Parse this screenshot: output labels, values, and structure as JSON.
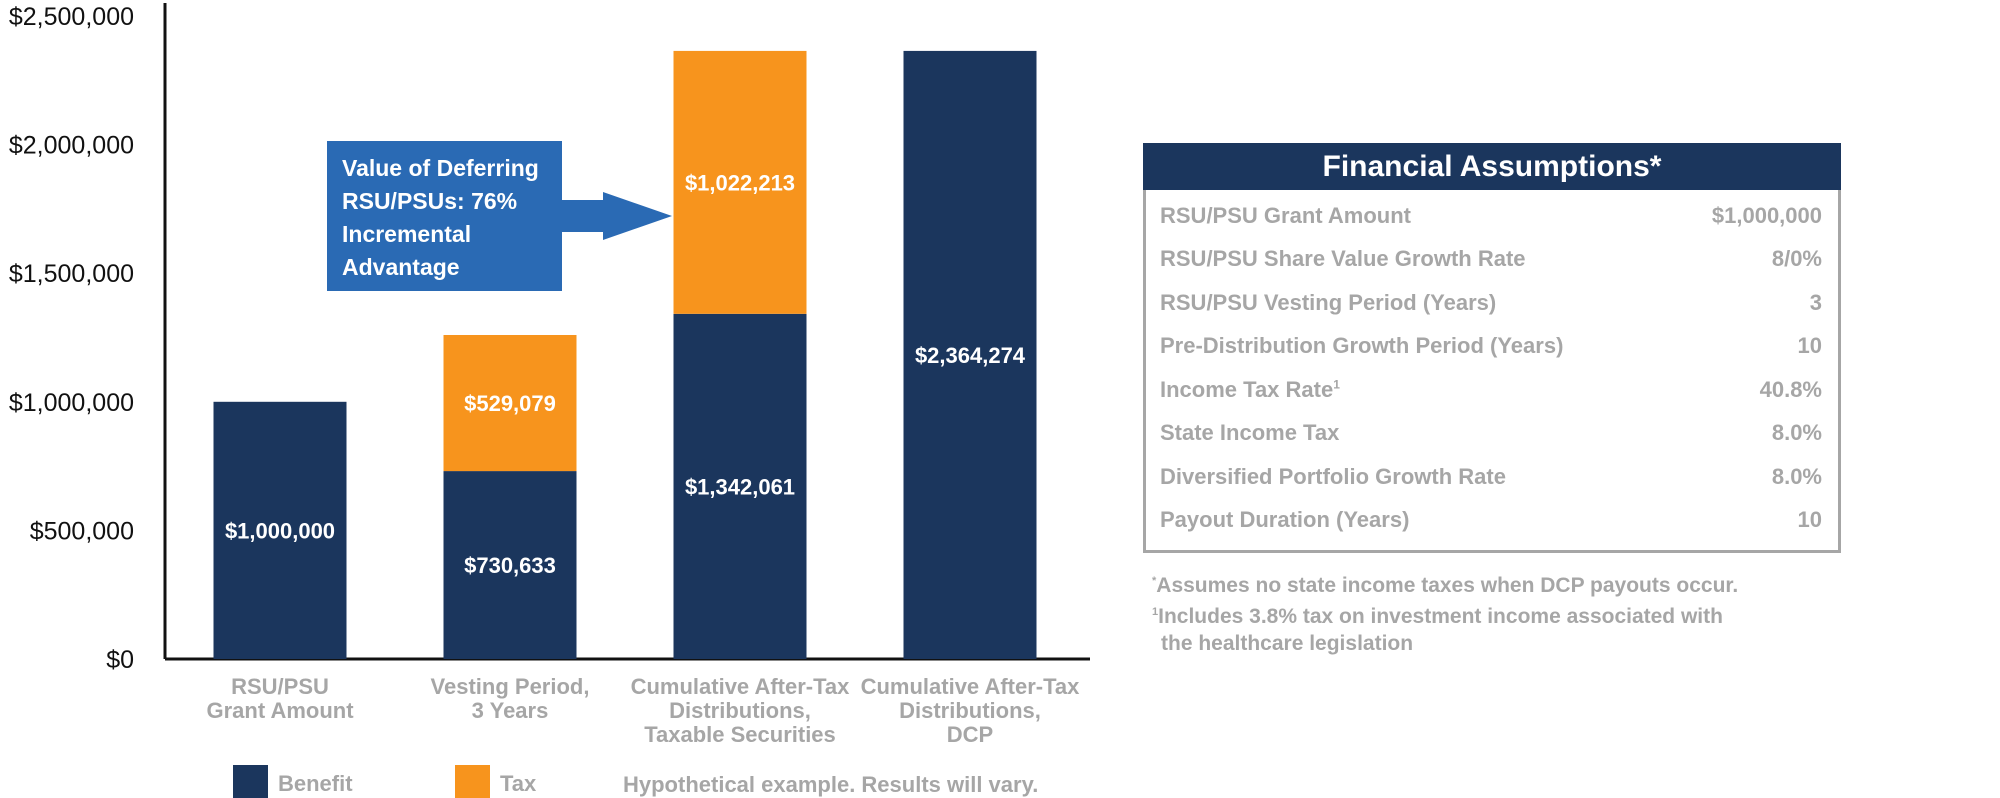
{
  "chart_data": {
    "type": "bar",
    "stacked": true,
    "categories": [
      [
        "RSU/PSU",
        "Grant Amount"
      ],
      [
        "Vesting Period,",
        "3 Years"
      ],
      [
        "Cumulative After-Tax",
        "Distributions,",
        "Taxable Securities"
      ],
      [
        "Cumulative After-Tax",
        "Distributions,",
        "DCP"
      ]
    ],
    "series": [
      {
        "name": "Benefit",
        "color": "#1b365d",
        "values": [
          1000000,
          730633,
          1342061,
          2364274
        ]
      },
      {
        "name": "Tax",
        "color": "#f7941d",
        "values": [
          0,
          529079,
          1022213,
          0
        ]
      }
    ],
    "data_labels": [
      [
        "$1,000,000",
        ""
      ],
      [
        "$730,633",
        "$529,079"
      ],
      [
        "$1,342,061",
        "$1,022,213"
      ],
      [
        "$2,364,274",
        ""
      ]
    ],
    "ylim": [
      0,
      2500000
    ],
    "y_ticks": [
      {
        "value": 0,
        "label": "$0"
      },
      {
        "value": 500000,
        "label": "$500,000"
      },
      {
        "value": 1000000,
        "label": "$1,000,000"
      },
      {
        "value": 1500000,
        "label": "$1,500,000"
      },
      {
        "value": 2000000,
        "label": "$2,000,000"
      },
      {
        "value": 2500000,
        "label": "$2,500,000"
      }
    ],
    "grid": false,
    "legend": {
      "placement": "bottom",
      "entries": [
        "Benefit",
        "Tax"
      ]
    },
    "annotation": {
      "lines": [
        "Value of Deferring",
        "RSU/PSUs: 76%",
        "Incremental",
        "Advantage"
      ],
      "color": "#2a6ab4",
      "points_to_category": 2
    },
    "footnote": "Hypothetical example. Results will vary."
  },
  "assumptions": {
    "title": "Financial Assumptions*",
    "rows": [
      {
        "label": "RSU/PSU Grant Amount",
        "sup": "",
        "value": "$1,000,000"
      },
      {
        "label": "RSU/PSU Share Value Growth Rate",
        "sup": "",
        "value": "8/0%"
      },
      {
        "label": "RSU/PSU Vesting Period (Years)",
        "sup": "",
        "value": "3"
      },
      {
        "label": "Pre-Distribution Growth Period (Years)",
        "sup": "",
        "value": "10"
      },
      {
        "label": "Income Tax Rate",
        "sup": "1",
        "value": "40.8%"
      },
      {
        "label": "State Income Tax",
        "sup": "",
        "value": "8.0%"
      },
      {
        "label": "Diversified Portfolio Growth Rate",
        "sup": "",
        "value": "8.0%"
      },
      {
        "label": "Payout Duration (Years)",
        "sup": "",
        "value": "10"
      }
    ]
  },
  "notes": {
    "n1_mark": "*",
    "n1_text": "Assumes no state income taxes when DCP payouts occur.",
    "n2_mark": "1",
    "n2_text": "Includes 3.8% tax on investment income associated with",
    "n2_cont": "the healthcare legislation"
  }
}
